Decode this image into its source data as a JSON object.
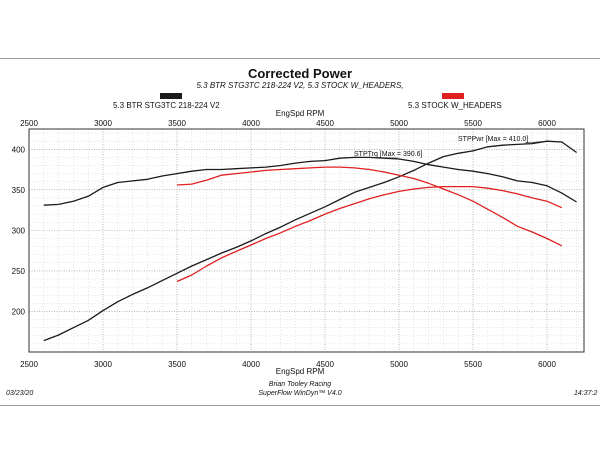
{
  "chart_data": {
    "type": "line",
    "title": "Corrected Power",
    "subtitle": "5.3 BTR STG3TC 218-224 V2, 5.3 STOCK W_HEADERS,",
    "xlabel": "EngSpd RPM",
    "xlim": [
      2500,
      6250
    ],
    "ylim": [
      150,
      425
    ],
    "x_ticks": [
      2500,
      3000,
      3500,
      4000,
      4500,
      5000,
      5500,
      6000
    ],
    "y_ticks": [
      200,
      250,
      300,
      350,
      400
    ],
    "grid": true,
    "legend_position": "top",
    "series": [
      {
        "name": "5.3 BTR STG3TC 218-224 V2",
        "color": "#1a1a1a",
        "curves": [
          {
            "label": "STPTrq",
            "x": [
              2600,
              2700,
              2800,
              2900,
              3000,
              3100,
              3200,
              3300,
              3400,
              3500,
              3600,
              3700,
              3800,
              3900,
              4000,
              4100,
              4200,
              4300,
              4400,
              4500,
              4600,
              4700,
              4800,
              4900,
              5000,
              5100,
              5200,
              5300,
              5400,
              5500,
              5600,
              5700,
              5800,
              5900,
              6000,
              6100,
              6200
            ],
            "y": [
              331,
              332,
              336,
              342,
              353,
              359,
              361,
              363,
              367,
              370,
              373,
              375,
              375,
              376,
              377,
              378,
              380,
              383,
              385,
              386,
              389,
              390,
              390,
              389,
              388,
              385,
              381,
              378,
              375,
              373,
              370,
              366,
              361,
              359,
              355,
              346,
              335
            ]
          },
          {
            "label": "STPPwr",
            "x": [
              2600,
              2700,
              2800,
              2900,
              3000,
              3100,
              3200,
              3300,
              3400,
              3500,
              3600,
              3700,
              3800,
              3900,
              4000,
              4100,
              4200,
              4300,
              4400,
              4500,
              4600,
              4700,
              4800,
              4900,
              5000,
              5100,
              5200,
              5300,
              5400,
              5500,
              5600,
              5700,
              5800,
              5900,
              6000,
              6100,
              6200
            ],
            "y": [
              164,
              171,
              180,
              189,
              201,
              212,
              221,
              229,
              238,
              247,
              256,
              264,
              272,
              279,
              287,
              296,
              304,
              313,
              321,
              329,
              338,
              347,
              353,
              359,
              366,
              374,
              383,
              391,
              395,
              398,
              403,
              405,
              406,
              407,
              410,
              409,
              396
            ]
          }
        ],
        "annotations": [
          "STPTrq [Max = 390.6]",
          "STPPwr [Max = 410.0]"
        ]
      },
      {
        "name": "5.3 STOCK W_HEADERS",
        "color": "#e02020",
        "curves": [
          {
            "label": "STPTrq",
            "x": [
              3500,
              3600,
              3700,
              3800,
              3900,
              4000,
              4100,
              4200,
              4300,
              4400,
              4500,
              4600,
              4700,
              4800,
              4900,
              5000,
              5100,
              5200,
              5300,
              5400,
              5500,
              5600,
              5700,
              5800,
              5900,
              6000,
              6100
            ],
            "y": [
              356,
              357,
              362,
              368,
              370,
              372,
              374,
              375,
              376,
              377,
              378,
              378,
              377,
              375,
              372,
              368,
              364,
              358,
              351,
              344,
              336,
              326,
              316,
              305,
              298,
              290,
              281
            ]
          },
          {
            "label": "STPPwr",
            "x": [
              3500,
              3600,
              3700,
              3800,
              3900,
              4000,
              4100,
              4200,
              4300,
              4400,
              4500,
              4600,
              4700,
              4800,
              4900,
              5000,
              5100,
              5200,
              5300,
              5400,
              5500,
              5600,
              5700,
              5800,
              5900,
              6000,
              6100
            ],
            "y": [
              237,
              245,
              256,
              266,
              274,
              282,
              290,
              297,
              305,
              312,
              320,
              327,
              333,
              339,
              344,
              348,
              351,
              353,
              354,
              354,
              354,
              352,
              349,
              345,
              340,
              336,
              328
            ]
          }
        ]
      }
    ]
  },
  "footer": {
    "date": "03/23/20",
    "shop": "Brian Tooley Racing",
    "software": "SuperFlow WinDyn™ V4.0",
    "time": "14:37:2"
  }
}
